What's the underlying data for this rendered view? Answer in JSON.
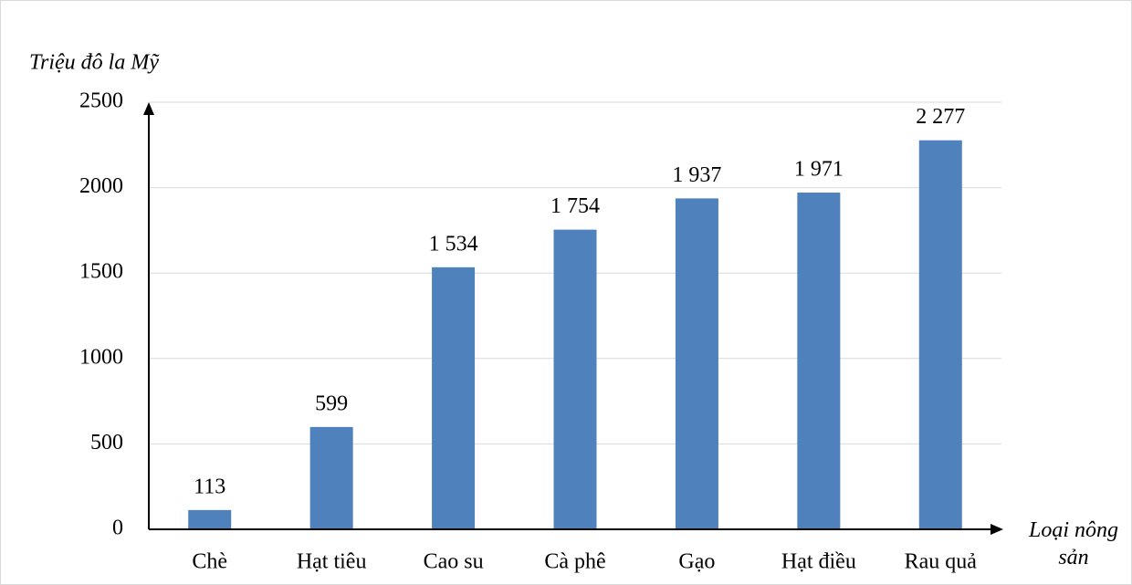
{
  "chart_data": {
    "type": "bar",
    "y_axis_label": "Triệu đô la Mỹ",
    "x_axis_label": "Loại nông sản",
    "categories": [
      "Chè",
      "Hạt tiêu",
      "Cao su",
      "Cà phê",
      "Gạo",
      "Hạt điều",
      "Rau quả"
    ],
    "values": [
      113,
      599,
      1534,
      1754,
      1937,
      1971,
      2277
    ],
    "value_labels": [
      "113",
      "599",
      "1 534",
      "1 754",
      "1 937",
      "1 971",
      "2 277"
    ],
    "color": "#4f81bd",
    "ylim": [
      0,
      2500
    ],
    "yticks": [
      0,
      500,
      1000,
      1500,
      2000,
      2500
    ],
    "grid": true
  }
}
